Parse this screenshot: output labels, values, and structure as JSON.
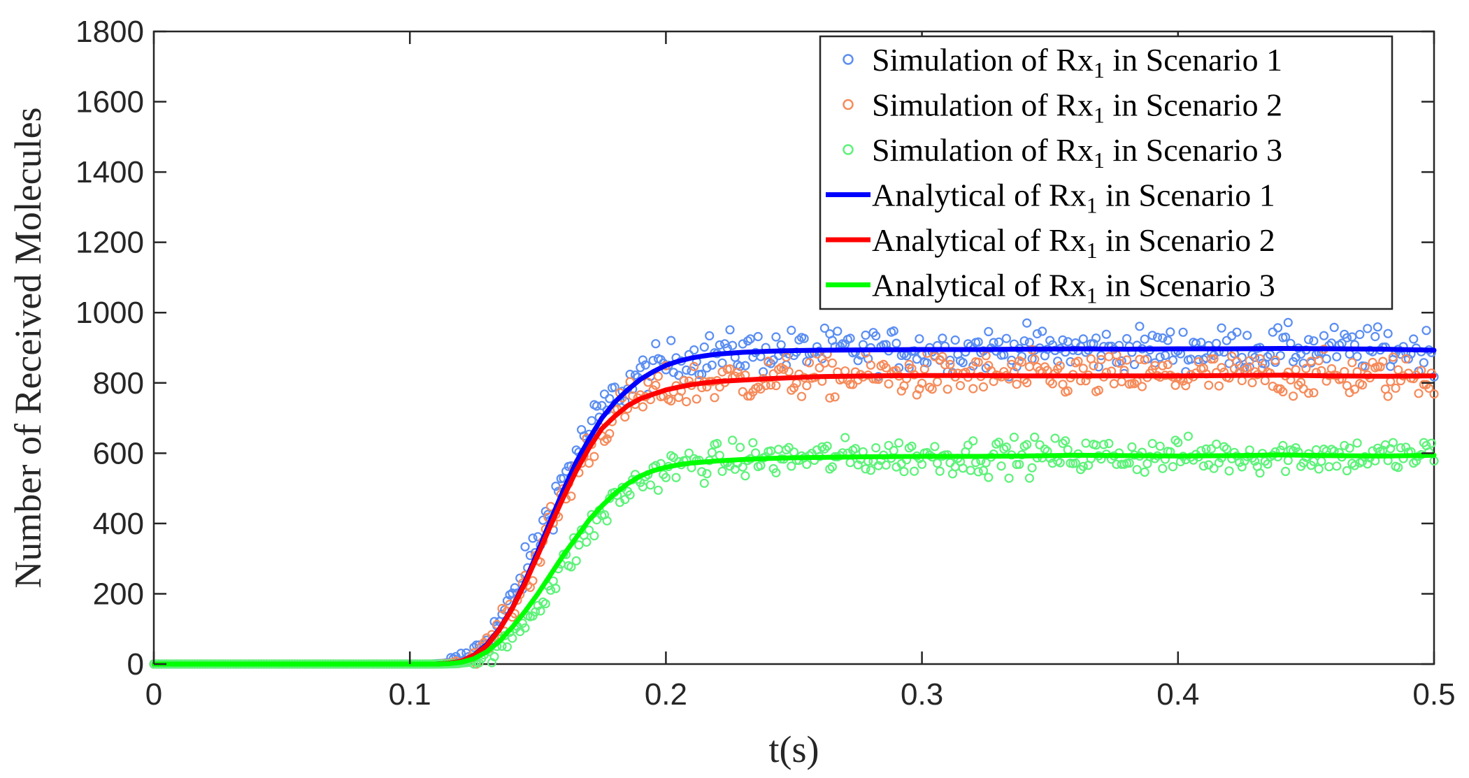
{
  "chart_data": {
    "type": "line",
    "title": "",
    "xlabel": "t(s)",
    "ylabel": "Number of Received Molecules",
    "xlim": [
      0,
      0.5
    ],
    "ylim": [
      0,
      1800
    ],
    "xticks": [
      0,
      0.1,
      0.2,
      0.3,
      0.4,
      0.5
    ],
    "xtick_labels": [
      "0",
      "0.1",
      "0.2",
      "0.3",
      "0.4",
      "0.5"
    ],
    "yticks": [
      0,
      200,
      400,
      600,
      800,
      1000,
      1200,
      1400,
      1600,
      1800
    ],
    "ytick_labels": [
      "0",
      "200",
      "400",
      "600",
      "800",
      "1000",
      "1200",
      "1400",
      "1600",
      "1800"
    ],
    "grid": false,
    "legend_position": "top-right",
    "legend": [
      {
        "prefix": "Simulation of Rx",
        "sub": "1",
        "suffix": " in Scenario 1",
        "marker": "circle",
        "color": "#5b8ef2"
      },
      {
        "prefix": "Simulation of Rx",
        "sub": "1",
        "suffix": " in Scenario 2",
        "marker": "circle",
        "color": "#f58b5b"
      },
      {
        "prefix": "Simulation of Rx",
        "sub": "1",
        "suffix": " in Scenario 3",
        "marker": "circle",
        "color": "#5ef27a"
      },
      {
        "prefix": "Analytical of Rx",
        "sub": "1",
        "suffix": " in Scenario 1",
        "marker": "line",
        "color": "#0000ff"
      },
      {
        "prefix": "Analytical of Rx",
        "sub": "1",
        "suffix": " in Scenario 2",
        "marker": "line",
        "color": "#ff0000"
      },
      {
        "prefix": "Analytical of Rx",
        "sub": "1",
        "suffix": " in Scenario 3",
        "marker": "line",
        "color": "#00ff00"
      }
    ],
    "analytical_t": [
      0,
      0.02,
      0.04,
      0.06,
      0.08,
      0.1,
      0.11,
      0.115,
      0.12,
      0.125,
      0.13,
      0.135,
      0.14,
      0.145,
      0.15,
      0.155,
      0.16,
      0.165,
      0.17,
      0.175,
      0.18,
      0.185,
      0.19,
      0.195,
      0.2,
      0.205,
      0.21,
      0.215,
      0.22,
      0.23,
      0.24,
      0.25,
      0.26,
      0.28,
      0.3,
      0.32,
      0.34,
      0.36,
      0.38,
      0.4,
      0.42,
      0.44,
      0.46,
      0.48,
      0.5
    ],
    "series": [
      {
        "name": "Simulation of Rx1 in Scenario 1",
        "style": "markers",
        "color": "#5b8ef2",
        "sim_plateau": 900,
        "sim_noise": 30,
        "sim_shift": -0.002
      },
      {
        "name": "Simulation of Rx1 in Scenario 2",
        "style": "markers",
        "color": "#f58b5b",
        "sim_plateau": 820,
        "sim_noise": 30,
        "sim_shift": 0
      },
      {
        "name": "Simulation of Rx1 in Scenario 3",
        "style": "markers",
        "color": "#5ef27a",
        "sim_plateau": 595,
        "sim_noise": 25,
        "sim_shift": 0.003
      },
      {
        "name": "Analytical of Rx1 in Scenario 1",
        "style": "line",
        "color": "#0000ff",
        "values": [
          0,
          0,
          0,
          0,
          0,
          0,
          0,
          2,
          8,
          25,
          55,
          100,
          160,
          235,
          320,
          410,
          495,
          575,
          640,
          700,
          745,
          780,
          810,
          832,
          850,
          862,
          871,
          877,
          882,
          887,
          890,
          892,
          893,
          894,
          895,
          895,
          896,
          897,
          896,
          897,
          897,
          898,
          897,
          896,
          893
        ]
      },
      {
        "name": "Analytical of Rx1 in Scenario 2",
        "style": "line",
        "color": "#ff0000",
        "values": [
          0,
          0,
          0,
          0,
          0,
          0,
          0,
          2,
          8,
          24,
          52,
          98,
          158,
          230,
          310,
          395,
          475,
          550,
          615,
          670,
          705,
          735,
          755,
          768,
          780,
          788,
          795,
          800,
          804,
          808,
          812,
          815,
          818,
          820,
          821,
          821,
          820,
          820,
          820,
          820,
          821,
          822,
          820,
          819,
          820
        ]
      },
      {
        "name": "Analytical of Rx1 in Scenario 3",
        "style": "line",
        "color": "#00ff00",
        "values": [
          0,
          0,
          0,
          0,
          0,
          0,
          0,
          1,
          5,
          15,
          35,
          65,
          105,
          150,
          200,
          255,
          310,
          360,
          410,
          450,
          485,
          513,
          535,
          550,
          560,
          567,
          572,
          575,
          578,
          582,
          585,
          587,
          588,
          590,
          591,
          591,
          592,
          594,
          593,
          592,
          593,
          595,
          593,
          592,
          594
        ]
      }
    ]
  }
}
